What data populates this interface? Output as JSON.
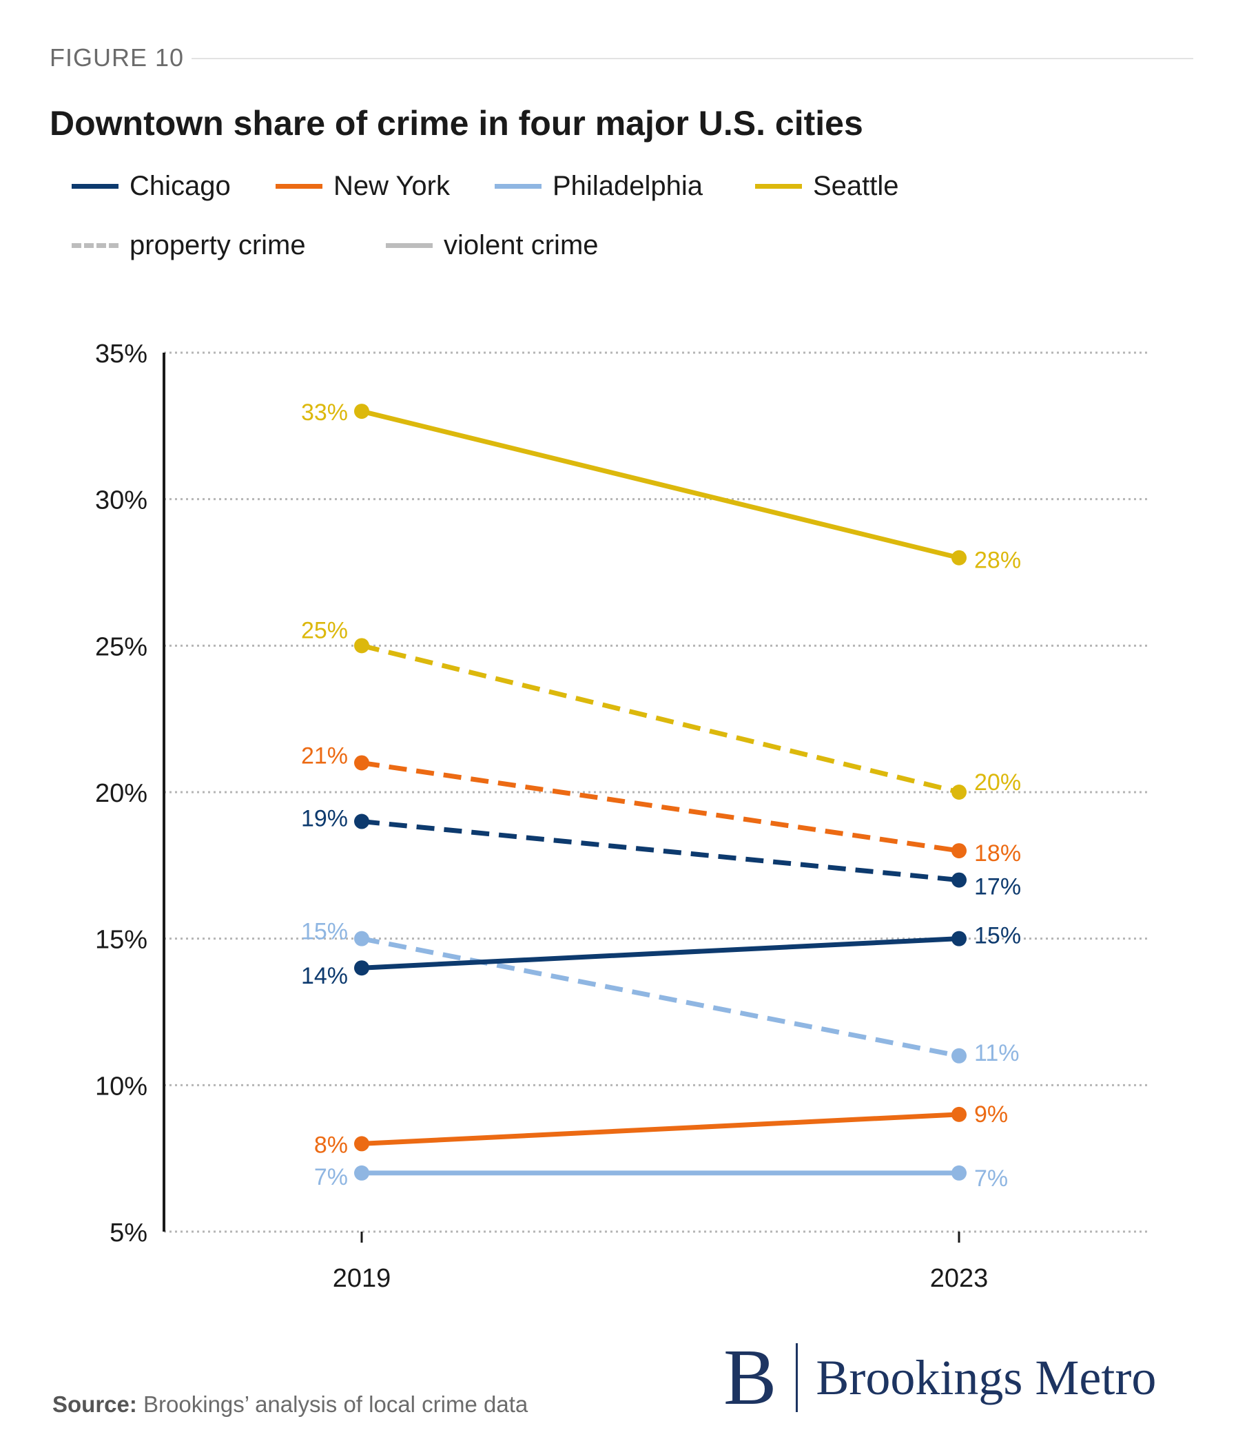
{
  "header": {
    "figure_label": "FIGURE 10",
    "title": "Downtown share of crime in four major U.S. cities"
  },
  "legend": {
    "cities": [
      {
        "label": "Chicago",
        "color": "#0d3a6e"
      },
      {
        "label": "New York",
        "color": "#ec6a13"
      },
      {
        "label": "Philadelphia",
        "color": "#8fb6e2"
      },
      {
        "label": "Seattle",
        "color": "#dcb80c"
      }
    ],
    "styles": [
      {
        "label": "property crime",
        "dashed": true,
        "color": "#bdbdbd"
      },
      {
        "label": "violent crime",
        "dashed": false,
        "color": "#bdbdbd"
      }
    ]
  },
  "chart_data": {
    "type": "line",
    "x": [
      "2019",
      "2023"
    ],
    "ylim": [
      5,
      35
    ],
    "y_ticks": [
      5,
      10,
      15,
      20,
      25,
      30,
      35
    ],
    "y_tick_labels": [
      "5%",
      "10%",
      "15%",
      "20%",
      "25%",
      "30%",
      "35%"
    ],
    "grid": "horizontal dotted",
    "series": [
      {
        "name": "Seattle",
        "crime": "violent crime",
        "color": "#dcb80c",
        "dashed": false,
        "values": [
          33,
          28
        ],
        "labels": [
          "33%",
          "28%"
        ]
      },
      {
        "name": "Seattle",
        "crime": "property crime",
        "color": "#dcb80c",
        "dashed": true,
        "values": [
          25,
          20
        ],
        "labels": [
          "25%",
          "20%"
        ]
      },
      {
        "name": "New York",
        "crime": "property crime",
        "color": "#ec6a13",
        "dashed": true,
        "values": [
          21,
          18
        ],
        "labels": [
          "21%",
          "18%"
        ]
      },
      {
        "name": "Chicago",
        "crime": "property crime",
        "color": "#0d3a6e",
        "dashed": true,
        "values": [
          19,
          17
        ],
        "labels": [
          "19%",
          "17%"
        ]
      },
      {
        "name": "Philadelphia",
        "crime": "property crime",
        "color": "#8fb6e2",
        "dashed": true,
        "values": [
          15,
          11
        ],
        "labels": [
          "15%",
          "11%"
        ]
      },
      {
        "name": "Chicago",
        "crime": "violent crime",
        "color": "#0d3a6e",
        "dashed": false,
        "values": [
          14,
          15
        ],
        "labels": [
          "14%",
          "15%"
        ]
      },
      {
        "name": "New York",
        "crime": "violent crime",
        "color": "#ec6a13",
        "dashed": false,
        "values": [
          8,
          9
        ],
        "labels": [
          "8%",
          "9%"
        ]
      },
      {
        "name": "Philadelphia",
        "crime": "violent crime",
        "color": "#8fb6e2",
        "dashed": false,
        "values": [
          7,
          7
        ],
        "labels": [
          "7%",
          "7%"
        ]
      }
    ]
  },
  "footer": {
    "source_label": "Source:",
    "source_text": " Brookings’ analysis of local crime data",
    "logo_letter": "B",
    "logo_text": "Brookings Metro"
  }
}
